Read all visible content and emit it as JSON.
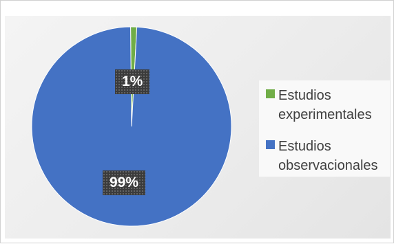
{
  "colors": {
    "experimental": "#70ad47",
    "observational": "#4472c4",
    "label_bg": "#3b3b3b"
  },
  "chart_data": {
    "type": "pie",
    "title": "",
    "legend_position": "right",
    "slices": [
      {
        "name": "Estudios experimentales",
        "value": 1,
        "label": "1%",
        "color": "#70ad47"
      },
      {
        "name": "Estudios observacionales",
        "value": 99,
        "label": "99%",
        "color": "#4472c4"
      }
    ]
  }
}
